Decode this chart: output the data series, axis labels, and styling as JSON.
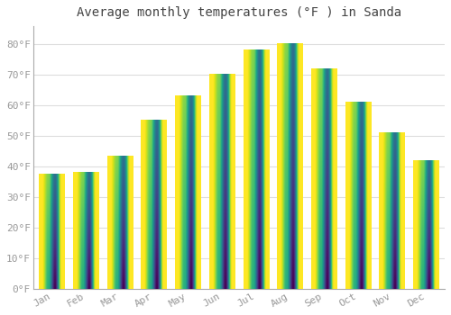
{
  "title": "Average monthly temperatures (°F ) in Sanda",
  "months": [
    "Jan",
    "Feb",
    "Mar",
    "Apr",
    "May",
    "Jun",
    "Jul",
    "Aug",
    "Sep",
    "Oct",
    "Nov",
    "Dec"
  ],
  "values": [
    37.5,
    38.0,
    43.5,
    55.0,
    63.0,
    70.0,
    78.0,
    80.0,
    72.0,
    61.0,
    51.0,
    42.0
  ],
  "bar_color_top": "#FFD060",
  "bar_color_bottom": "#FFA000",
  "background_color": "#FFFFFF",
  "plot_bg_color": "#FFFFFF",
  "grid_color": "#DDDDDD",
  "ylim": [
    0,
    86
  ],
  "yticks": [
    0,
    10,
    20,
    30,
    40,
    50,
    60,
    70,
    80
  ],
  "ytick_labels": [
    "0°F",
    "10°F",
    "20°F",
    "30°F",
    "40°F",
    "50°F",
    "60°F",
    "70°F",
    "80°F"
  ],
  "title_fontsize": 10,
  "tick_fontsize": 8,
  "tick_color": "#999999",
  "spine_color": "#AAAAAA",
  "bar_width": 0.75
}
